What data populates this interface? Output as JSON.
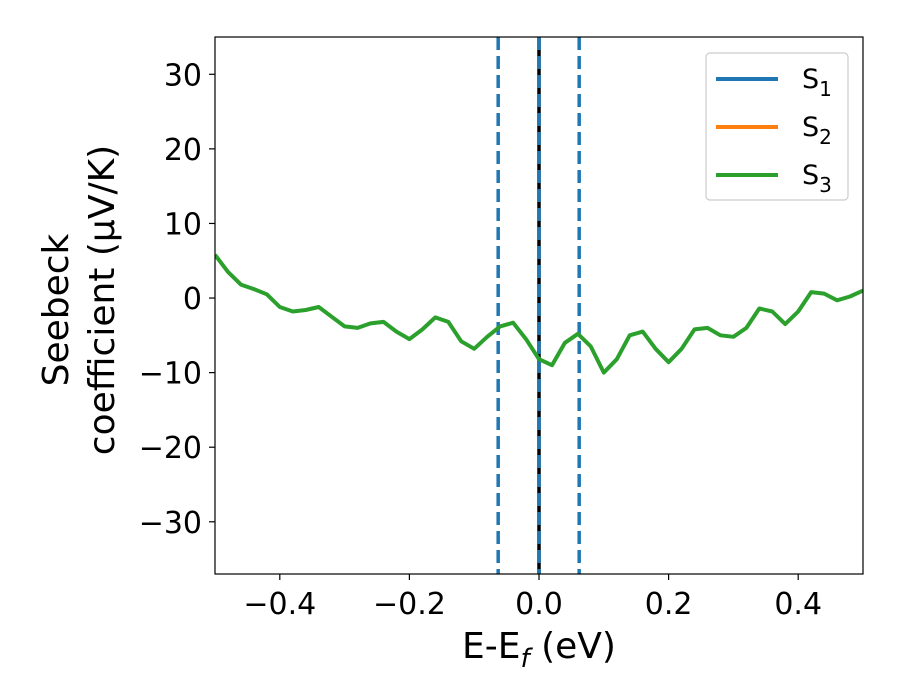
{
  "chart_data": {
    "type": "line",
    "title": "",
    "xlabel": {
      "main": "E-E",
      "sub": "f",
      "unit": " (eV)"
    },
    "ylabel": {
      "line1": "Seebeck",
      "line2": "coefficient  (μV/K)"
    },
    "xlim": [
      -0.5,
      0.5
    ],
    "ylim": [
      -37,
      35
    ],
    "xticks": [
      -0.4,
      -0.2,
      0.0,
      0.2,
      0.4
    ],
    "xtick_labels": [
      "−0.4",
      "−0.2",
      "0.0",
      "0.2",
      "0.4"
    ],
    "yticks": [
      -30,
      -20,
      -10,
      0,
      10,
      20,
      30
    ],
    "ytick_labels": [
      "−30",
      "−20",
      "−10",
      "0",
      "10",
      "20",
      "30"
    ],
    "grid": false,
    "legend_position": "top-right",
    "series": [
      {
        "name": "S",
        "sub": "1",
        "color": "#1f77b4",
        "x": [],
        "y": []
      },
      {
        "name": "S",
        "sub": "2",
        "color": "#ff7f0e",
        "x": [],
        "y": []
      },
      {
        "name": "S",
        "sub": "3",
        "color": "#2ca02c",
        "x": [
          -0.5,
          -0.48,
          -0.46,
          -0.44,
          -0.42,
          -0.4,
          -0.38,
          -0.36,
          -0.34,
          -0.32,
          -0.3,
          -0.28,
          -0.26,
          -0.24,
          -0.22,
          -0.2,
          -0.18,
          -0.16,
          -0.14,
          -0.12,
          -0.1,
          -0.08,
          -0.06,
          -0.04,
          -0.02,
          0.0,
          0.02,
          0.04,
          0.06,
          0.08,
          0.1,
          0.12,
          0.14,
          0.16,
          0.18,
          0.2,
          0.22,
          0.24,
          0.26,
          0.28,
          0.3,
          0.32,
          0.34,
          0.36,
          0.38,
          0.4,
          0.42,
          0.44,
          0.46,
          0.48,
          0.5
        ],
        "y": [
          5.8,
          3.5,
          1.8,
          1.2,
          0.5,
          -1.2,
          -1.8,
          -1.6,
          -1.2,
          -2.5,
          -3.8,
          -4.0,
          -3.4,
          -3.2,
          -4.5,
          -5.5,
          -4.2,
          -2.6,
          -3.2,
          -5.8,
          -6.8,
          -5.2,
          -3.8,
          -3.3,
          -5.5,
          -8.2,
          -9.0,
          -6.0,
          -4.8,
          -6.5,
          -10.0,
          -8.2,
          -5.0,
          -4.5,
          -6.8,
          -8.6,
          -6.8,
          -4.2,
          -4.0,
          -5.0,
          -5.2,
          -4.0,
          -1.4,
          -1.8,
          -3.5,
          -1.8,
          0.8,
          0.6,
          -0.3,
          0.2,
          1.0
        ]
      }
    ],
    "vlines": [
      {
        "x": -0.063,
        "style": "dashed",
        "color": "#1f77b4"
      },
      {
        "x": 0.0,
        "style": "solid",
        "color": "#000000"
      },
      {
        "x": 0.0,
        "style": "dashed",
        "color": "#1f77b4"
      },
      {
        "x": 0.062,
        "style": "dashed",
        "color": "#1f77b4"
      }
    ]
  }
}
